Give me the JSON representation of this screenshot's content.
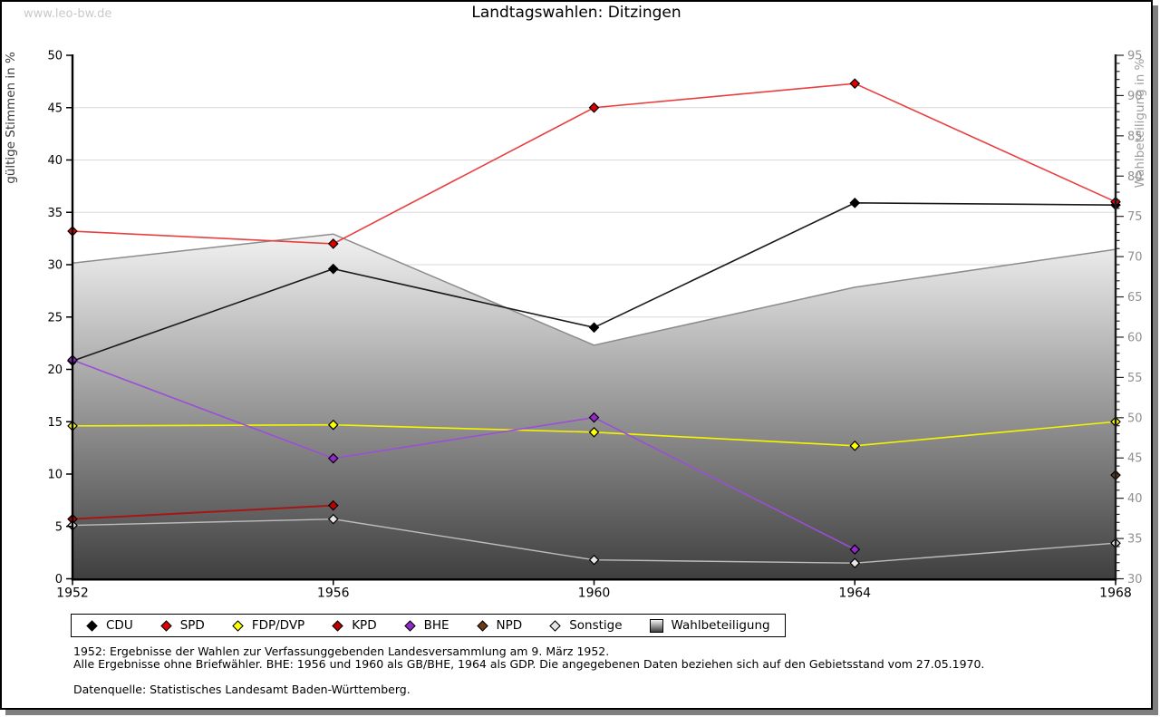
{
  "watermark": "www.leo-bw.de",
  "title": "Landtagswahlen: Ditzingen",
  "chart_data": {
    "type": "line",
    "title": "Landtagswahlen: Ditzingen",
    "categories": [
      "1952",
      "1956",
      "1960",
      "1964",
      "1968"
    ],
    "left_axis": {
      "label": "gültige Stimmen in %",
      "min": 0,
      "max": 50,
      "tick_step": 5
    },
    "right_axis": {
      "label": "Wahlbeteiligung in %",
      "min": 30,
      "max": 95,
      "major_tick_step": 5,
      "minor_tick_step": 1
    },
    "grid": {
      "horizontal_lines_every": 5,
      "color": "#d9d9d9"
    },
    "legend_position": "bottom",
    "area_series": {
      "name": "Wahlbeteiligung",
      "axis": "right",
      "values": [
        69.2,
        72.8,
        59.0,
        66.2,
        70.9
      ],
      "fill_top": "#f2f2f2",
      "fill_bottom": "#3f3f3f",
      "stroke": "#8c8c8c"
    },
    "series": [
      {
        "name": "CDU",
        "axis": "left",
        "line_color": "#1a1a1a",
        "marker_color": "#000000",
        "line_width": 1.6,
        "values": [
          20.8,
          29.6,
          24.0,
          35.9,
          35.7
        ]
      },
      {
        "name": "SPD",
        "axis": "left",
        "line_color": "#e84040",
        "marker_color": "#dd0000",
        "line_width": 1.6,
        "values": [
          33.2,
          32.0,
          45.0,
          47.3,
          36.0
        ]
      },
      {
        "name": "FDP/DVP",
        "axis": "left",
        "line_color": "#f5f500",
        "marker_color": "#ffff00",
        "line_width": 1.6,
        "values": [
          14.6,
          14.7,
          14.0,
          12.7,
          15.0
        ]
      },
      {
        "name": "KPD",
        "axis": "left",
        "line_color": "#a31717",
        "marker_color": "#bb0000",
        "line_width": 2.0,
        "values": [
          5.7,
          7.0,
          null,
          null,
          null
        ]
      },
      {
        "name": "BHE",
        "axis": "left",
        "line_color": "#9b4fd6",
        "marker_color": "#9328cc",
        "line_width": 1.6,
        "values": [
          20.9,
          11.5,
          15.4,
          2.8,
          null
        ]
      },
      {
        "name": "NPD",
        "axis": "left",
        "line_color": "#6b3a1a",
        "marker_color": "#6b3a1a",
        "line_width": 1.6,
        "values": [
          null,
          null,
          null,
          null,
          9.9
        ]
      },
      {
        "name": "Sonstige",
        "axis": "left",
        "line_color": "#bcbcbc",
        "marker_color": "#e6e6e6",
        "line_width": 1.4,
        "values": [
          5.1,
          5.7,
          1.8,
          1.5,
          3.4
        ]
      }
    ]
  },
  "legend": {
    "items": [
      {
        "label": "CDU",
        "marker": "diamond",
        "color": "#000000"
      },
      {
        "label": "SPD",
        "marker": "diamond",
        "color": "#dd0000"
      },
      {
        "label": "FDP/DVP",
        "marker": "diamond",
        "color": "#ffff00"
      },
      {
        "label": "KPD",
        "marker": "diamond",
        "color": "#bb0000"
      },
      {
        "label": "BHE",
        "marker": "diamond",
        "color": "#9328cc"
      },
      {
        "label": "NPD",
        "marker": "diamond",
        "color": "#6b3a1a"
      },
      {
        "label": "Sonstige",
        "marker": "diamond",
        "color": "#e6e6e6"
      },
      {
        "label": "Wahlbeteiligung",
        "marker": "gradient-square",
        "color": "#9e9e9e"
      }
    ]
  },
  "footnotes": {
    "line1": "1952: Ergebnisse der Wahlen zur Verfassunggebenden Landesversammlung am 9. März 1952.",
    "line2": "Alle Ergebnisse ohne Briefwähler. BHE: 1956 und 1960 als GB/BHE, 1964 als GDP. Die angegebenen Daten beziehen sich auf den Gebietsstand vom 27.05.1970.",
    "source": "Datenquelle: Statistisches Landesamt Baden-Württemberg."
  }
}
